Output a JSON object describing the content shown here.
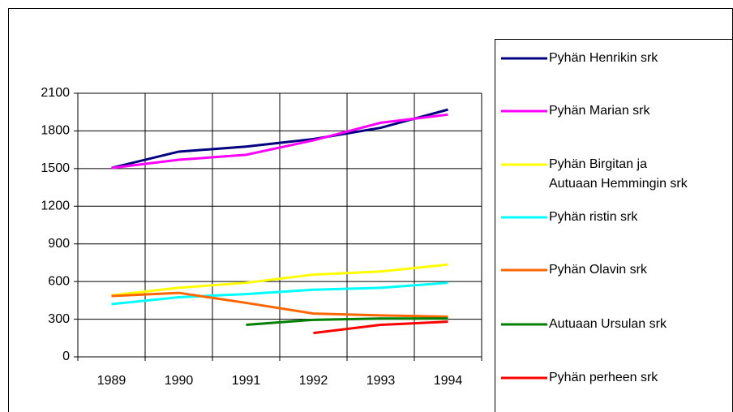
{
  "chart_data": {
    "type": "line",
    "categories": [
      "1989",
      "1990",
      "1991",
      "1992",
      "1993",
      "1994"
    ],
    "series": [
      {
        "name": "Pyhän Henrikin srk",
        "color": "#000080",
        "values": [
          1505,
          1635,
          1675,
          1735,
          1825,
          1970
        ]
      },
      {
        "name": "Pyhän Marian srk",
        "color": "#ff00ff",
        "values": [
          1505,
          1570,
          1610,
          1725,
          1865,
          1930
        ]
      },
      {
        "name": "Pyhän Birgitan ja\nAutuaan Hemmingin srk",
        "color": "#ffff00",
        "values": [
          490,
          550,
          590,
          655,
          680,
          735
        ]
      },
      {
        "name": "Pyhän ristin srk",
        "color": "#00ffff",
        "values": [
          420,
          475,
          500,
          535,
          550,
          590
        ]
      },
      {
        "name": "Pyhän Olavin srk",
        "color": "#ff6600",
        "values": [
          485,
          510,
          430,
          345,
          330,
          320
        ]
      },
      {
        "name": "Autuaan Ursulan srk",
        "color": "#008000",
        "values": [
          null,
          null,
          255,
          295,
          305,
          305
        ]
      },
      {
        "name": "Pyhän perheen srk",
        "color": "#ff0000",
        "values": [
          null,
          null,
          null,
          190,
          255,
          280
        ]
      }
    ],
    "ylim": [
      0,
      2100
    ],
    "yticks": [
      0,
      300,
      600,
      900,
      1200,
      1500,
      1800,
      2100
    ],
    "grid": true
  }
}
